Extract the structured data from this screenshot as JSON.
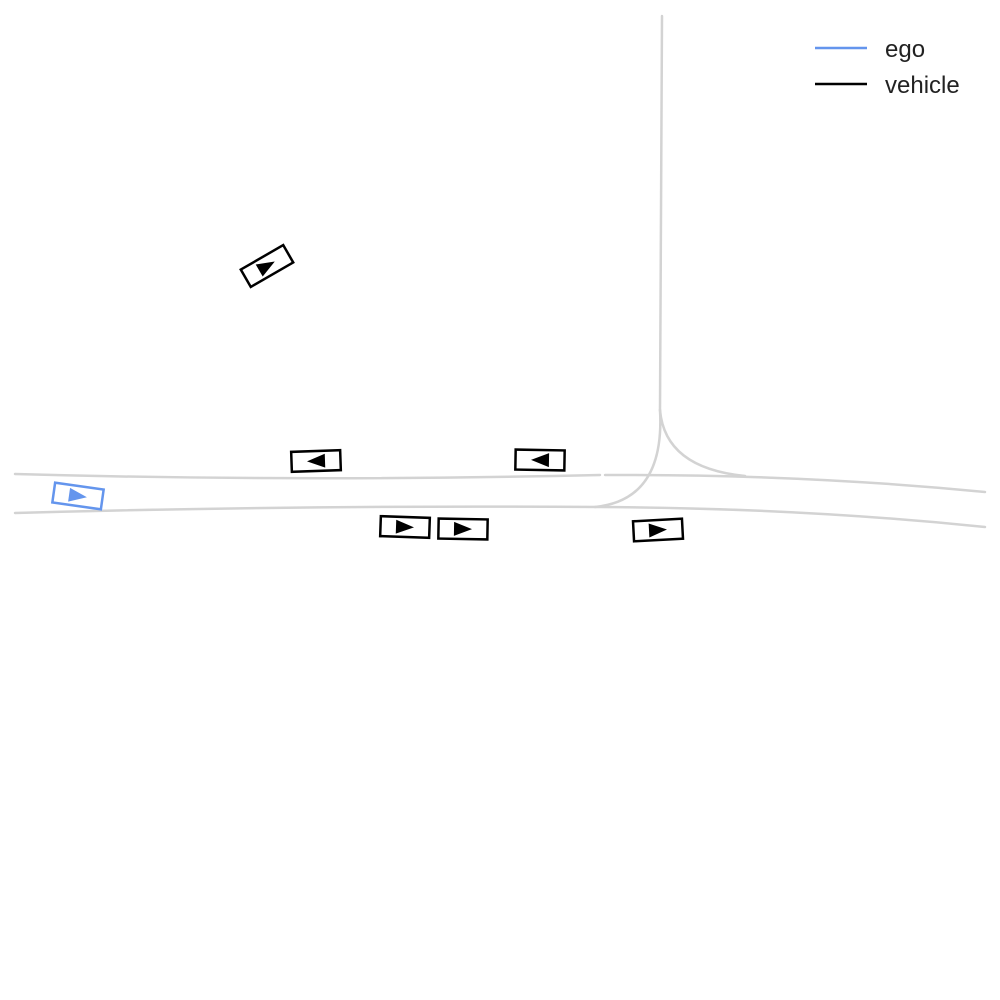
{
  "legend": {
    "items": [
      {
        "key": "ego",
        "label": "ego",
        "color": "#6495ED"
      },
      {
        "key": "vehicle",
        "label": "vehicle",
        "color": "#000000"
      }
    ]
  },
  "colors": {
    "road": "#d3d3d3",
    "ego": "#6495ED",
    "vehicle": "#000000",
    "background": "#ffffff"
  },
  "agents": [
    {
      "type": "ego",
      "heading": "east"
    },
    {
      "type": "vehicle",
      "heading": "northeast"
    },
    {
      "type": "vehicle",
      "heading": "west"
    },
    {
      "type": "vehicle",
      "heading": "west"
    },
    {
      "type": "vehicle",
      "heading": "east"
    },
    {
      "type": "vehicle",
      "heading": "east"
    },
    {
      "type": "vehicle",
      "heading": "east"
    }
  ]
}
